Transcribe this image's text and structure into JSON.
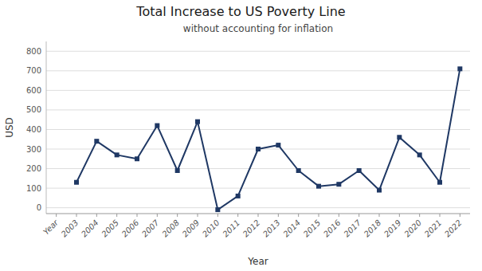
{
  "chart_data": {
    "type": "line",
    "title": "Total Increase to US Poverty Line",
    "subtitle": "without accounting for inflation",
    "xlabel": "Year",
    "ylabel": "USD",
    "categories": [
      "Year",
      "2003",
      "2004",
      "2005",
      "2006",
      "2007",
      "2008",
      "2009",
      "2010",
      "2011",
      "2012",
      "2013",
      "2014",
      "2015",
      "2016",
      "2017",
      "2018",
      "2019",
      "2020",
      "2021",
      "2022"
    ],
    "values": [
      null,
      130,
      340,
      270,
      250,
      420,
      190,
      440,
      -10,
      60,
      300,
      320,
      190,
      110,
      120,
      190,
      90,
      360,
      270,
      130,
      710
    ],
    "color": "#1F3864",
    "marker": "square",
    "ylim": [
      -30,
      850
    ],
    "yticks": [
      0,
      100,
      200,
      300,
      400,
      500,
      600,
      700,
      800
    ],
    "grid": true
  }
}
